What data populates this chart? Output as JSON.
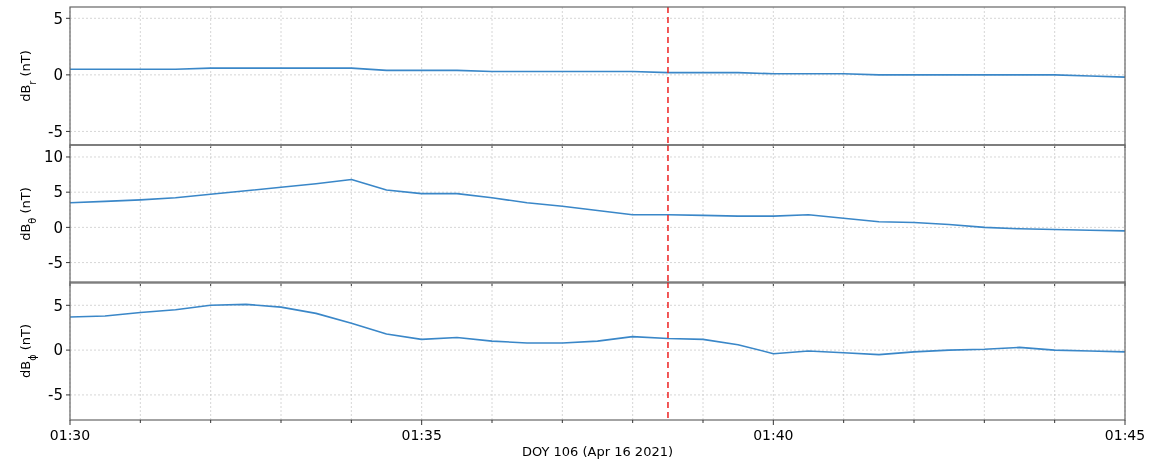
{
  "chart_data": [
    {
      "type": "line",
      "ylabel": "dB$_{r}$ (nT)",
      "xlim": [
        1.5,
        1.75
      ],
      "ylim": [
        -6.2,
        6
      ],
      "yticks": [
        -5,
        0,
        5
      ],
      "xticks": [
        {
          "value": 1.5,
          "label": null
        },
        {
          "value": 1.516667,
          "label": null
        },
        {
          "value": 1.533333,
          "label": null
        },
        {
          "value": 1.55,
          "label": null
        },
        {
          "value": 1.566667,
          "label": null
        },
        {
          "value": 1.583333,
          "label": null
        },
        {
          "value": 1.6,
          "label": null
        },
        {
          "value": 1.616667,
          "label": null
        },
        {
          "value": 1.633333,
          "label": null
        },
        {
          "value": 1.65,
          "label": null
        },
        {
          "value": 1.666667,
          "label": null
        },
        {
          "value": 1.683333,
          "label": null
        },
        {
          "value": 1.7,
          "label": null
        },
        {
          "value": 1.716667,
          "label": null
        },
        {
          "value": 1.733333,
          "label": null
        },
        {
          "value": 1.75,
          "label": null
        }
      ],
      "tick_labels": "y",
      "grid": true,
      "line_style": "solid",
      "marker": "none",
      "x": [
        1.5,
        1.5083,
        1.5167,
        1.525,
        1.5333,
        1.5417,
        1.55,
        1.5583,
        1.5667,
        1.575,
        1.5833,
        1.5917,
        1.6,
        1.6083,
        1.6167,
        1.625,
        1.6333,
        1.6417,
        1.65,
        1.6583,
        1.6667,
        1.675,
        1.6833,
        1.6917,
        1.7,
        1.7083,
        1.7167,
        1.725,
        1.7333,
        1.7417,
        1.75
      ],
      "series": [
        {
          "color": "#3a87c8",
          "values": [
            0.5,
            0.5,
            0.5,
            0.5,
            0.6,
            0.6,
            0.6,
            0.6,
            0.6,
            0.4,
            0.4,
            0.4,
            0.3,
            0.3,
            0.3,
            0.3,
            0.3,
            0.2,
            0.2,
            0.2,
            0.1,
            0.1,
            0.1,
            0.0,
            0.0,
            0.0,
            0.0,
            0.0,
            0.0,
            -0.1,
            -0.2
          ]
        }
      ],
      "ref_lines": [
        {
          "axis": "x",
          "value": 1.6417,
          "color": "#ee2222",
          "line_style": "dashed"
        }
      ]
    },
    {
      "type": "line",
      "ylabel": "dB$_{θ}$ (nT)",
      "xlim": [
        1.5,
        1.75
      ],
      "ylim": [
        -7.9,
        11.7
      ],
      "yticks": [
        -5,
        0,
        5,
        10
      ],
      "xticks": [
        {
          "value": 1.5,
          "label": null
        },
        {
          "value": 1.516667,
          "label": null
        },
        {
          "value": 1.533333,
          "label": null
        },
        {
          "value": 1.55,
          "label": null
        },
        {
          "value": 1.566667,
          "label": null
        },
        {
          "value": 1.583333,
          "label": null
        },
        {
          "value": 1.6,
          "label": null
        },
        {
          "value": 1.616667,
          "label": null
        },
        {
          "value": 1.633333,
          "label": null
        },
        {
          "value": 1.65,
          "label": null
        },
        {
          "value": 1.666667,
          "label": null
        },
        {
          "value": 1.683333,
          "label": null
        },
        {
          "value": 1.7,
          "label": null
        },
        {
          "value": 1.716667,
          "label": null
        },
        {
          "value": 1.733333,
          "label": null
        },
        {
          "value": 1.75,
          "label": null
        }
      ],
      "tick_labels": "y",
      "grid": true,
      "line_style": "solid",
      "marker": "none",
      "x": [
        1.5,
        1.5083,
        1.5167,
        1.525,
        1.5333,
        1.5417,
        1.55,
        1.5583,
        1.5667,
        1.575,
        1.5833,
        1.5917,
        1.6,
        1.6083,
        1.6167,
        1.625,
        1.6333,
        1.6417,
        1.65,
        1.6583,
        1.6667,
        1.675,
        1.6833,
        1.6917,
        1.7,
        1.7083,
        1.7167,
        1.725,
        1.7333,
        1.7417,
        1.75
      ],
      "series": [
        {
          "color": "#3a87c8",
          "values": [
            3.5,
            3.7,
            3.9,
            4.2,
            4.7,
            5.2,
            5.7,
            6.2,
            6.8,
            5.3,
            4.8,
            4.8,
            4.2,
            3.5,
            3.0,
            2.4,
            1.8,
            1.8,
            1.7,
            1.6,
            1.6,
            1.8,
            1.3,
            0.8,
            0.7,
            0.4,
            0.0,
            -0.2,
            -0.3,
            -0.4,
            -0.5
          ]
        }
      ],
      "ref_lines": [
        {
          "axis": "x",
          "value": 1.6417,
          "color": "#ee2222",
          "line_style": "dashed"
        }
      ]
    },
    {
      "type": "line",
      "ylabel": "dB$_{ϕ}$ (nT)",
      "xlabel": "DOY 106 (Apr 16 2021)",
      "xlim": [
        1.5,
        1.75
      ],
      "ylim": [
        -7.8,
        7.6
      ],
      "yticks": [
        -5,
        0,
        5
      ],
      "xticks": [
        {
          "value": 1.5,
          "label": "01:30"
        },
        {
          "value": 1.516667,
          "label": null
        },
        {
          "value": 1.533333,
          "label": null
        },
        {
          "value": 1.55,
          "label": null
        },
        {
          "value": 1.566667,
          "label": null
        },
        {
          "value": 1.583333,
          "label": "01:35"
        },
        {
          "value": 1.6,
          "label": null
        },
        {
          "value": 1.616667,
          "label": null
        },
        {
          "value": 1.633333,
          "label": null
        },
        {
          "value": 1.65,
          "label": null
        },
        {
          "value": 1.666667,
          "label": "01:40"
        },
        {
          "value": 1.683333,
          "label": null
        },
        {
          "value": 1.7,
          "label": null
        },
        {
          "value": 1.716667,
          "label": null
        },
        {
          "value": 1.733333,
          "label": null
        },
        {
          "value": 1.75,
          "label": "01:45"
        }
      ],
      "grid": true,
      "line_style": "solid",
      "marker": "none",
      "x": [
        1.5,
        1.5083,
        1.5167,
        1.525,
        1.5333,
        1.5417,
        1.55,
        1.5583,
        1.5667,
        1.575,
        1.5833,
        1.5917,
        1.6,
        1.6083,
        1.6167,
        1.625,
        1.6333,
        1.6417,
        1.65,
        1.6583,
        1.6667,
        1.675,
        1.6833,
        1.6917,
        1.7,
        1.7083,
        1.7167,
        1.725,
        1.7333,
        1.7417,
        1.75
      ],
      "series": [
        {
          "color": "#3a87c8",
          "values": [
            3.7,
            3.8,
            4.2,
            4.5,
            5.0,
            5.1,
            4.8,
            4.1,
            3.0,
            1.8,
            1.2,
            1.4,
            1.0,
            0.8,
            0.8,
            1.0,
            1.5,
            1.3,
            1.2,
            0.6,
            -0.4,
            -0.1,
            -0.3,
            -0.5,
            -0.2,
            0.0,
            0.1,
            0.3,
            0.0,
            -0.1,
            -0.2
          ]
        }
      ],
      "ref_lines": [
        {
          "axis": "x",
          "value": 1.6417,
          "color": "#ee2222",
          "line_style": "dashed"
        }
      ]
    }
  ]
}
